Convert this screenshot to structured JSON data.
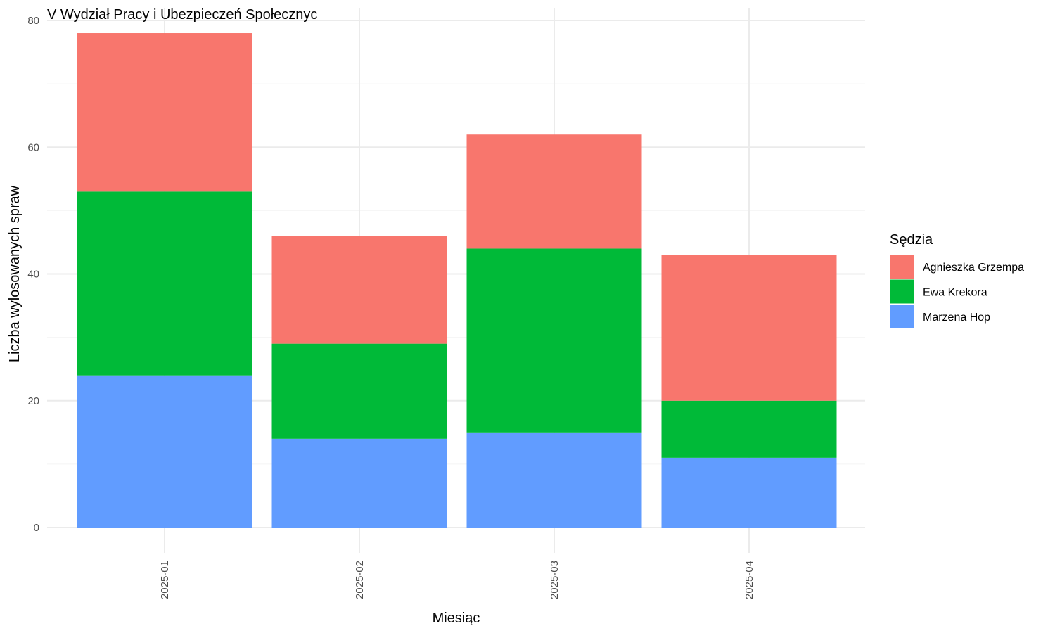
{
  "chart_data": {
    "type": "bar",
    "stacked": true,
    "title": "V Wydział Pracy i Ubezpieczeń Społecznyc",
    "xlabel": "Miesiąc",
    "ylabel": "Liczba wylosowanych spraw",
    "categories": [
      "2025-01",
      "2025-02",
      "2025-03",
      "2025-04"
    ],
    "series": [
      {
        "name": "Marzena Hop",
        "color": "#619CFF",
        "values": [
          24,
          14,
          15,
          11
        ]
      },
      {
        "name": "Ewa Krekora",
        "color": "#00BA38",
        "values": [
          29,
          15,
          29,
          9
        ]
      },
      {
        "name": "Agnieszka Grzempa",
        "color": "#F8766D",
        "values": [
          25,
          17,
          18,
          23
        ]
      }
    ],
    "ylim": [
      0,
      80
    ],
    "yticks": [
      0,
      20,
      40,
      60,
      80
    ],
    "grid": true,
    "legend": {
      "title": "Sędzia",
      "placement": "right",
      "order": [
        "Agnieszka Grzempa",
        "Ewa Krekora",
        "Marzena Hop"
      ]
    },
    "x_tick_rotation": "vertical"
  }
}
